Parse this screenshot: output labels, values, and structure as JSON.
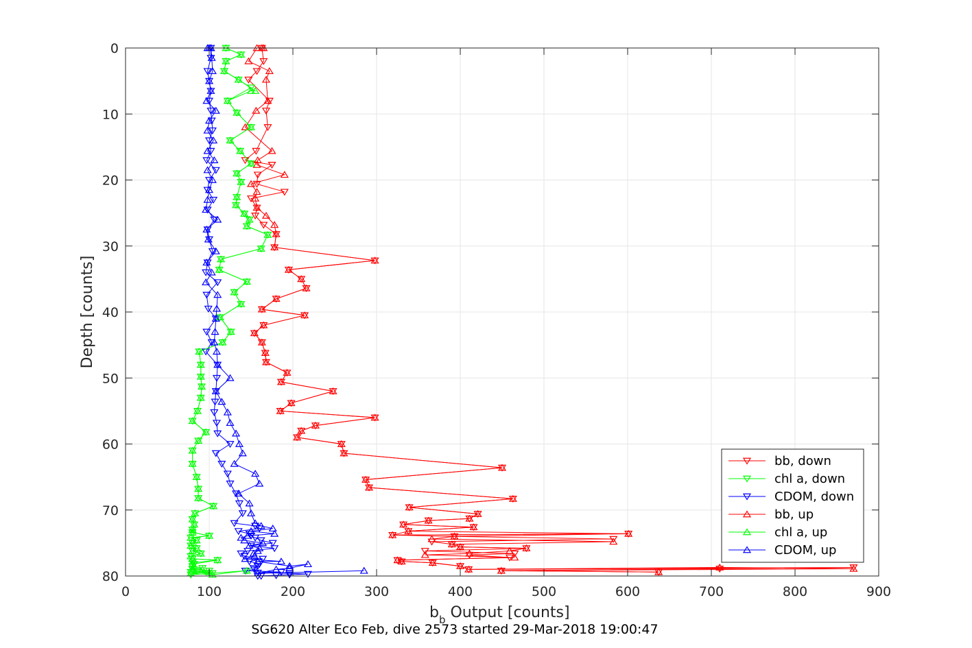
{
  "chart_data": {
    "type": "line",
    "title": "",
    "caption": "SG620 Alter Eco Feb, dive 2573 started 29-Mar-2018 19:00:47",
    "xlabel_main": "b",
    "xlabel_sub": "b",
    "xlabel_rest": " Output [counts]",
    "ylabel": "Depth [counts]",
    "xlim": [
      0,
      900
    ],
    "ylim": [
      0,
      80
    ],
    "y_reversed": true,
    "grid": true,
    "xticks": [
      "0",
      "100",
      "200",
      "300",
      "400",
      "500",
      "600",
      "700",
      "800",
      "900"
    ],
    "yticks": [
      "0",
      "10",
      "20",
      "30",
      "40",
      "50",
      "60",
      "70",
      "80"
    ],
    "legend_position": "bottom-right",
    "series": [
      {
        "name": "bb, down",
        "color": "#ff0000",
        "marker": "triangle-down",
        "x": [
          163,
          165,
          157,
          147,
          172,
          168,
          170,
          156,
          143,
          175,
          158,
          157,
          190,
          150,
          157,
          155,
          165,
          180,
          178,
          298,
          195,
          210,
          216,
          180,
          163,
          214,
          165,
          154,
          163,
          167,
          168,
          193,
          186,
          248,
          198,
          185,
          298,
          227,
          210,
          205,
          258,
          261,
          450,
          287,
          291,
          463,
          339,
          421,
          411,
          362,
          332,
          416,
          338,
          601,
          319,
          393,
          583,
          366,
          390,
          400,
          479,
          358,
          465,
          411,
          459,
          325,
          330,
          367,
          400,
          410,
          870,
          710,
          449,
          637
        ],
        "y": [
          0,
          2,
          3.5,
          4.8,
          8,
          9.5,
          12,
          15.6,
          17,
          17.7,
          19.2,
          20.6,
          21.8,
          22.8,
          24.2,
          25.4,
          26.8,
          28.2,
          30.2,
          32.2,
          33.6,
          35,
          36.4,
          38,
          39.6,
          40.5,
          42,
          43.2,
          44.6,
          46.2,
          47.6,
          49.2,
          50.6,
          52,
          53.8,
          55,
          56,
          57.2,
          58,
          59,
          60,
          61.4,
          63.6,
          65.4,
          66.6,
          68.3,
          69.6,
          70.6,
          71.3,
          71.6,
          72.2,
          72.6,
          73.2,
          73.6,
          73.8,
          74,
          74.4,
          74.8,
          75.2,
          75.6,
          75.8,
          76.2,
          76.6,
          76.8,
          77.2,
          77.6,
          77.8,
          78,
          78.5,
          79,
          78.7,
          78.9,
          79.2,
          79.4
        ]
      },
      {
        "name": "chl a, down",
        "color": "#00ff00",
        "marker": "triangle-down",
        "x": [
          120,
          138,
          120,
          118,
          135,
          150,
          122,
          133,
          150,
          125,
          137,
          150,
          133,
          138,
          133,
          132,
          142,
          148,
          145,
          170,
          162,
          114,
          112,
          145,
          130,
          138,
          113,
          126,
          116,
          88,
          90,
          90,
          91,
          90,
          86,
          80,
          96,
          87,
          80,
          80,
          85,
          87,
          87,
          105,
          83,
          80,
          82,
          80,
          80,
          100,
          78,
          85,
          80,
          78,
          85,
          80,
          90,
          78,
          80,
          110,
          80,
          82,
          80,
          92,
          80,
          100,
          78,
          104,
          78,
          145
        ],
        "y": [
          0,
          1,
          2,
          3.5,
          4.8,
          6,
          8,
          9.8,
          12,
          14,
          15.6,
          17.5,
          19,
          20.3,
          22.6,
          23.8,
          25.1,
          26,
          27,
          28.3,
          30.4,
          32,
          33.6,
          35.4,
          37,
          38.8,
          40.8,
          43,
          44.6,
          46,
          48,
          49.8,
          51.3,
          53,
          55,
          56.5,
          58.2,
          59.5,
          61,
          63,
          65,
          66.8,
          68.2,
          69.4,
          70.5,
          71.4,
          72.2,
          73,
          73.4,
          73.9,
          74.2,
          74.6,
          75,
          75.4,
          75.8,
          76.2,
          76.6,
          77,
          77.4,
          77.6,
          78,
          78.2,
          78.5,
          78.8,
          79,
          79.2,
          79.4,
          79.6,
          79.8,
          79.2
        ]
      },
      {
        "name": "CDOM, down",
        "color": "#0000ff",
        "marker": "triangle-down",
        "x": [
          102,
          102,
          98,
          100,
          102,
          100,
          102,
          103,
          104,
          100,
          102,
          97,
          108,
          100,
          98,
          105,
          98,
          106,
          98,
          100,
          104,
          98,
          96,
          110,
          97,
          99,
          108,
          97,
          103,
          96,
          110,
          109,
          108,
          107,
          106,
          109,
          110,
          125,
          108,
          115,
          122,
          125,
          132,
          136,
          140,
          130,
          155,
          160,
          135,
          148,
          150,
          155,
          162,
          176,
          150,
          178,
          146,
          138,
          142,
          164,
          148,
          160,
          158,
          153,
          154,
          143,
          186,
          158,
          196,
          218,
          196,
          180,
          158,
          162
        ],
        "y": [
          0,
          1.5,
          3.5,
          5,
          6.5,
          8,
          9.5,
          11,
          12.5,
          14,
          15.6,
          17,
          18.5,
          20,
          21.5,
          23,
          24.5,
          26,
          27.5,
          29,
          30.8,
          32.5,
          34,
          35.5,
          37.4,
          39.5,
          41,
          43,
          44.6,
          46,
          48,
          50,
          52,
          53.6,
          55.2,
          56.8,
          58.4,
          60,
          61.4,
          63,
          64.5,
          66,
          67.5,
          69,
          70.5,
          72,
          72.4,
          72.8,
          73.2,
          73.6,
          73.9,
          74.2,
          74.6,
          75,
          75.4,
          75.8,
          76.2,
          76.6,
          77,
          77.4,
          77.8,
          78.2,
          78.5,
          78.8,
          79,
          79.2,
          79.4,
          79.5,
          79.6,
          79.7,
          79.8,
          79.9,
          80,
          80
        ]
      },
      {
        "name": "bb, up",
        "color": "#ff0000",
        "marker": "triangle-up",
        "x": [
          637,
          449,
          870,
          710,
          410,
          400,
          367,
          330,
          325,
          465,
          358,
          411,
          459,
          479,
          400,
          390,
          583,
          366,
          393,
          601,
          319,
          338,
          416,
          332,
          362,
          411,
          421,
          339,
          463,
          291,
          287,
          450,
          261,
          258,
          205,
          210,
          227,
          298,
          185,
          198,
          248,
          186,
          193,
          168,
          167,
          163,
          154,
          165,
          214,
          163,
          180,
          216,
          210,
          195,
          298,
          178,
          180,
          178,
          168,
          157,
          155,
          157,
          150,
          190,
          157,
          158,
          175,
          143,
          156,
          170,
          168,
          172,
          147,
          157,
          165,
          163
        ],
        "y": [
          79.4,
          79.2,
          78.9,
          78.7,
          79,
          78.5,
          78,
          77.8,
          77.6,
          77.2,
          76.8,
          76.6,
          76.2,
          75.8,
          75.6,
          75.2,
          74.8,
          74.4,
          74,
          73.6,
          73.8,
          73.2,
          72.6,
          72.2,
          71.6,
          71.3,
          70.6,
          69.6,
          68.3,
          66.6,
          65.4,
          63.6,
          61.4,
          60,
          59,
          58,
          57.2,
          56,
          55,
          53.8,
          52,
          50.6,
          49.2,
          47.6,
          46.2,
          44.6,
          43.2,
          42,
          40.5,
          39.6,
          38,
          36.4,
          35,
          33.6,
          32.2,
          30.2,
          28.2,
          26.8,
          25.4,
          24.2,
          22.8,
          21.8,
          20.6,
          19.2,
          17.7,
          17,
          15.6,
          12,
          9.5,
          8,
          4.8,
          3.5,
          2,
          0,
          0,
          0
        ]
      },
      {
        "name": "chl a, up",
        "color": "#00ff00",
        "marker": "triangle-up",
        "x": [
          145,
          104,
          78,
          100,
          80,
          92,
          80,
          82,
          80,
          110,
          80,
          78,
          90,
          80,
          85,
          78,
          80,
          85,
          78,
          100,
          80,
          80,
          82,
          80,
          83,
          105,
          87,
          87,
          85,
          80,
          80,
          87,
          96,
          80,
          86,
          90,
          91,
          90,
          90,
          88,
          116,
          126,
          113,
          138,
          130,
          145,
          112,
          114,
          162,
          170,
          145,
          148,
          142,
          132,
          133,
          138,
          133,
          150,
          137,
          125,
          150,
          133,
          122,
          150,
          155,
          135,
          118,
          120,
          138,
          120
        ],
        "y": [
          79.2,
          79.8,
          79.6,
          79.4,
          79.2,
          79,
          78.8,
          78.5,
          78.2,
          77.6,
          77.4,
          77,
          76.6,
          76.2,
          75.8,
          75.4,
          75,
          74.6,
          74.2,
          73.9,
          73.4,
          73,
          72.2,
          71.4,
          70.5,
          69.4,
          68.2,
          66.8,
          65,
          63,
          61,
          59.5,
          58.2,
          56.5,
          55,
          53,
          51.3,
          49.8,
          48,
          46,
          44.6,
          43,
          40.8,
          38.8,
          37,
          35.4,
          33.6,
          32,
          30.4,
          28.3,
          27,
          26,
          25.1,
          23.8,
          22.6,
          20.3,
          19,
          17.5,
          15.6,
          14,
          12,
          9.8,
          8,
          6.5,
          6.5,
          4.8,
          3.5,
          2,
          1,
          0
        ]
      },
      {
        "name": "CDOM, up",
        "color": "#0000ff",
        "marker": "triangle-up",
        "x": [
          285,
          158,
          180,
          196,
          218,
          196,
          158,
          186,
          143,
          154,
          153,
          158,
          160,
          148,
          164,
          142,
          138,
          146,
          178,
          150,
          176,
          162,
          155,
          150,
          148,
          135,
          160,
          155,
          130,
          140,
          136,
          132,
          125,
          122,
          115,
          108,
          125,
          110,
          109,
          106,
          107,
          108,
          109,
          110,
          96,
          103,
          97,
          108,
          99,
          97,
          110,
          96,
          98,
          100,
          104,
          98,
          106,
          98,
          105,
          98,
          100,
          108,
          97,
          102,
          100,
          104,
          103,
          102,
          100,
          102,
          100,
          98,
          102,
          102
        ],
        "y": [
          79.2,
          79.6,
          79,
          78.8,
          78.2,
          78.5,
          77.8,
          77.8,
          77.4,
          77,
          76.6,
          76.2,
          75.8,
          75.4,
          75,
          74.6,
          74.2,
          73.9,
          73.6,
          73.2,
          72.8,
          72.4,
          72,
          70.5,
          69,
          67.5,
          66,
          64.5,
          63,
          61.4,
          60,
          58.4,
          56.8,
          55.2,
          53.6,
          52,
          50,
          48,
          46,
          44.6,
          43,
          41,
          39.5,
          37.4,
          35.5,
          34,
          32.5,
          30.8,
          29,
          27.5,
          26,
          24.5,
          23,
          21.5,
          20,
          18.5,
          17,
          15.6,
          14,
          12.5,
          11,
          9.5,
          8,
          6.5,
          5,
          3.5,
          1.5,
          0,
          0,
          0,
          0,
          0,
          0,
          0
        ]
      }
    ]
  }
}
